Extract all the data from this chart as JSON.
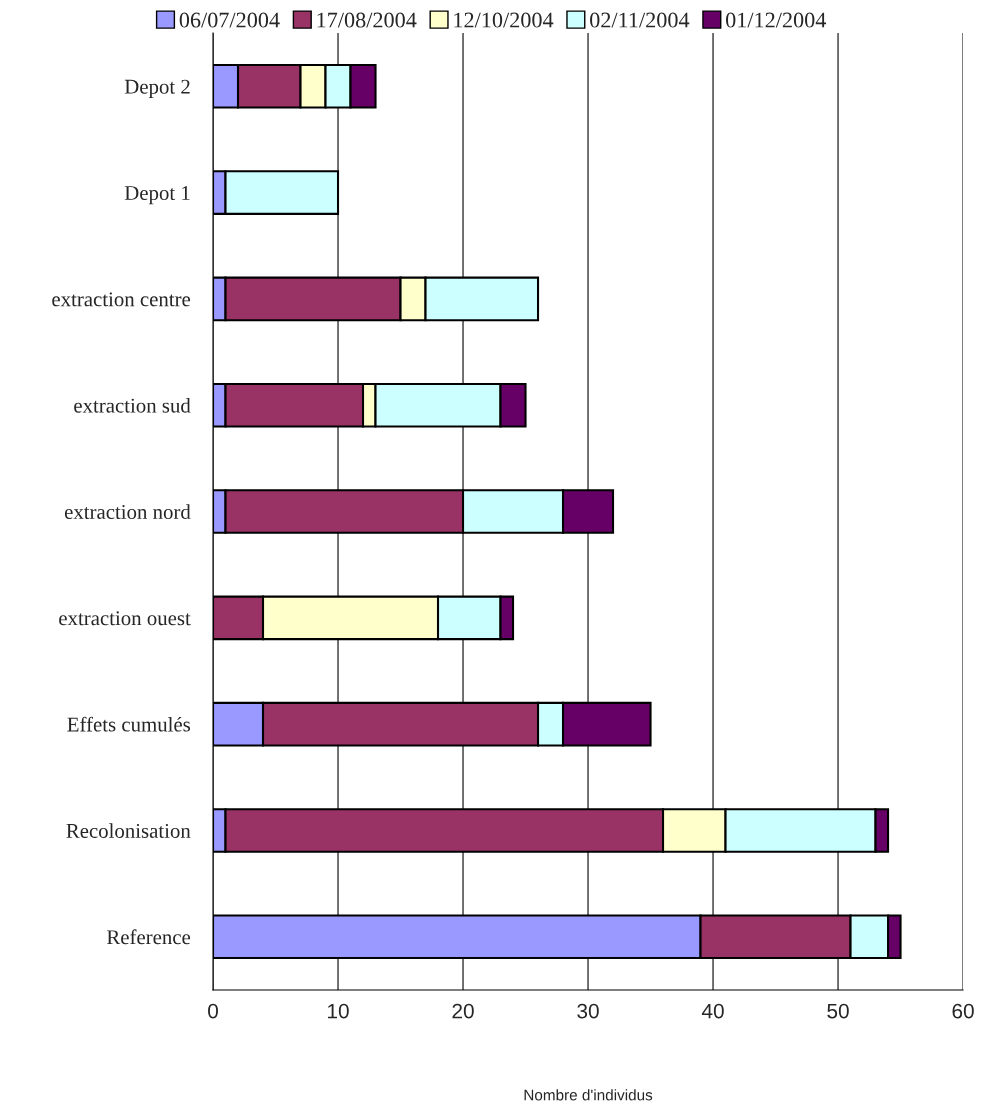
{
  "chart_data": {
    "type": "bar",
    "orientation": "horizontal",
    "stacked": true,
    "xlabel": "Nombre d'individus",
    "categories": [
      "Depot 2",
      "Depot 1",
      "extraction centre",
      "extraction sud",
      "extraction nord",
      "extraction ouest",
      "Effets cumulés",
      "Recolonisation",
      "Reference"
    ],
    "series": [
      {
        "name": "06/07/2004",
        "color": "#9999ff",
        "values": [
          2,
          1,
          1,
          1,
          1,
          null,
          4,
          1,
          39
        ]
      },
      {
        "name": "17/08/2004",
        "color": "#993366",
        "values": [
          5,
          null,
          14,
          11,
          19,
          4,
          22,
          35,
          12
        ]
      },
      {
        "name": "12/10/2004",
        "color": "#ffffcc",
        "values": [
          2,
          null,
          2,
          1,
          null,
          14,
          null,
          5,
          null
        ]
      },
      {
        "name": "02/11/2004",
        "color": "#ccffff",
        "values": [
          2,
          9,
          9,
          10,
          8,
          5,
          2,
          12,
          3
        ]
      },
      {
        "name": "01/12/2004",
        "color": "#660066",
        "values": [
          2,
          null,
          null,
          2,
          4,
          1,
          7,
          1,
          1
        ]
      }
    ],
    "xlim": [
      0,
      60
    ],
    "xticks": [
      0,
      10,
      20,
      30,
      40,
      50,
      60
    ],
    "grid": "x",
    "legend": "top"
  }
}
